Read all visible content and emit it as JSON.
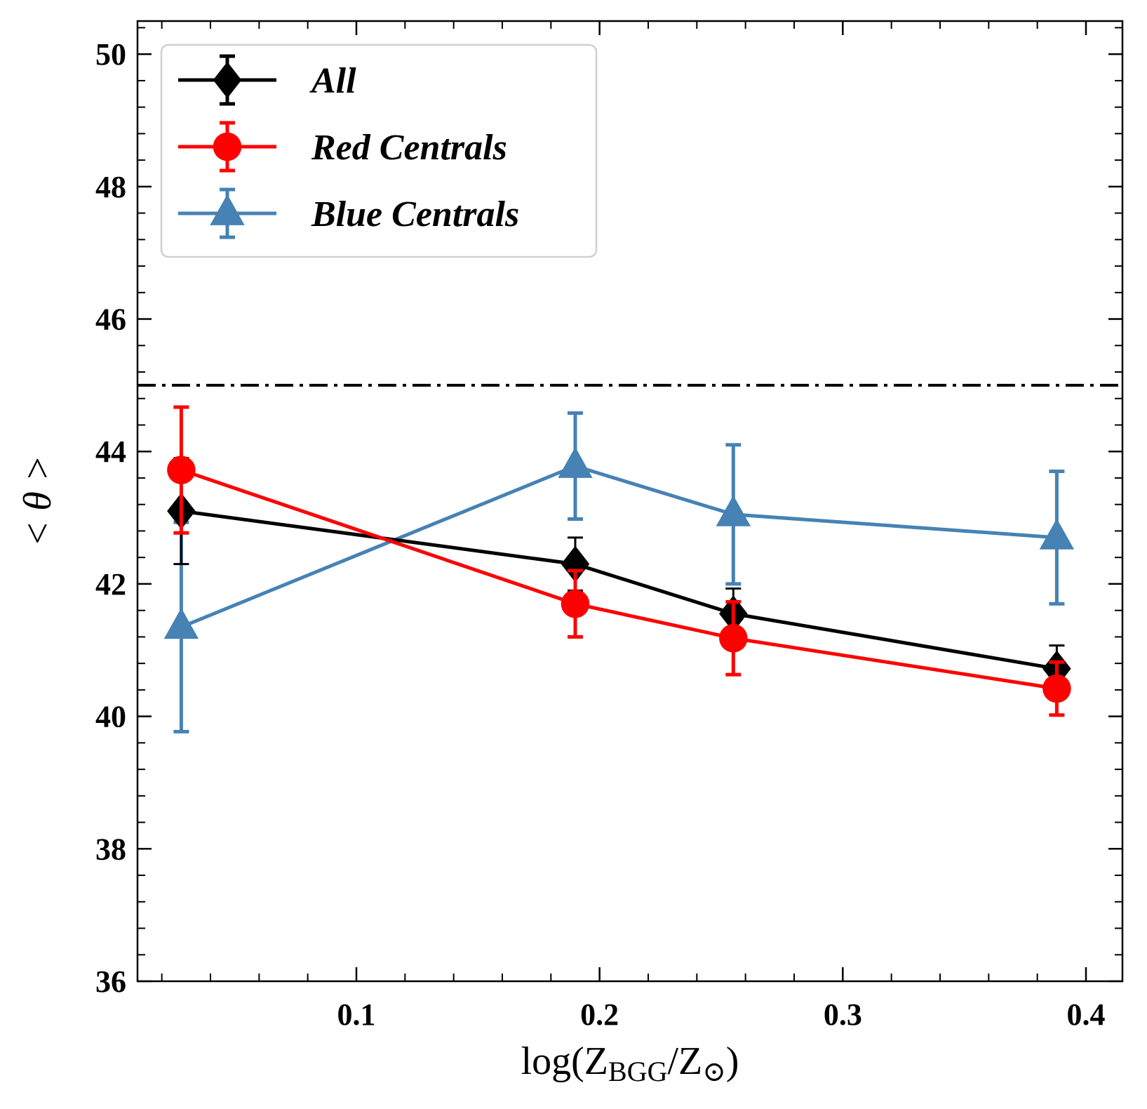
{
  "chart_data": {
    "type": "line",
    "xlabel": "log(Z",
    "xlabel_sub": "BGG",
    "xlabel_mid": "/Z",
    "xlabel_sub2": "⊙",
    "xlabel_end": ")",
    "ylabel": "< θ >",
    "xlim": [
      0.01,
      0.415
    ],
    "ylim": [
      36,
      50.5
    ],
    "xticks": [
      0.1,
      0.2,
      0.3,
      0.4
    ],
    "xtick_labels": [
      "0.1",
      "0.2",
      "0.3",
      "0.4"
    ],
    "yticks": [
      36,
      38,
      40,
      42,
      44,
      46,
      48,
      50
    ],
    "ytick_labels": [
      "36",
      "38",
      "40",
      "42",
      "44",
      "46",
      "48",
      "50"
    ],
    "reference_line": {
      "y": 45,
      "style": "dashdot",
      "color": "#000000"
    },
    "legend_position": "top-left",
    "series": [
      {
        "name": "All",
        "color": "#000000",
        "marker": "diamond",
        "x": [
          0.028,
          0.19,
          0.255,
          0.388
        ],
        "y": [
          43.1,
          42.3,
          41.55,
          40.72
        ],
        "yerr": [
          0.8,
          0.4,
          0.38,
          0.35
        ]
      },
      {
        "name": "Red Centrals",
        "color": "#ff0000",
        "marker": "circle",
        "x": [
          0.028,
          0.19,
          0.255,
          0.388
        ],
        "y": [
          43.72,
          41.7,
          41.18,
          40.42
        ],
        "yerr": [
          0.95,
          0.5,
          0.55,
          0.4
        ]
      },
      {
        "name": "Blue Centrals",
        "color": "#4682b4",
        "marker": "triangle",
        "x": [
          0.028,
          0.19,
          0.255,
          0.388
        ],
        "y": [
          41.35,
          43.78,
          43.05,
          42.7
        ],
        "yerr": [
          1.58,
          0.8,
          1.05,
          1.0
        ]
      }
    ]
  }
}
